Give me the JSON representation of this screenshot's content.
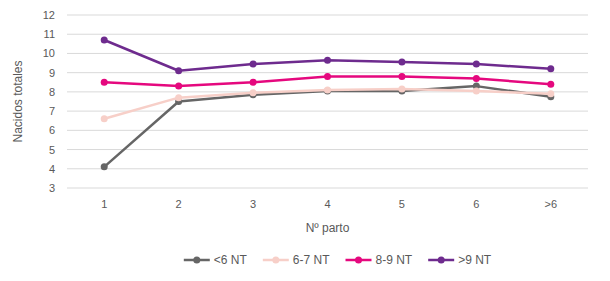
{
  "chart_data": {
    "type": "line",
    "x_label": "Nº parto",
    "y_label": "Nacidos totales",
    "categories": [
      "1",
      "2",
      "3",
      "4",
      "5",
      "6",
      ">6"
    ],
    "series": [
      {
        "name": "<6 NT",
        "color": "#666666",
        "values": [
          4.1,
          7.5,
          7.85,
          8.05,
          8.05,
          8.3,
          7.75
        ]
      },
      {
        "name": "6-7 NT",
        "color": "#f7cfc8",
        "values": [
          6.6,
          7.7,
          7.95,
          8.1,
          8.15,
          8.05,
          7.9
        ]
      },
      {
        "name": "8-9 NT",
        "color": "#e5087e",
        "values": [
          8.5,
          8.3,
          8.5,
          8.8,
          8.8,
          8.7,
          8.4
        ]
      },
      {
        "name": ">9 NT",
        "color": "#6e2b8e",
        "values": [
          10.7,
          9.1,
          9.45,
          9.65,
          9.55,
          9.45,
          9.2
        ]
      }
    ],
    "ylim": [
      3,
      12
    ],
    "yticks": [
      3,
      4,
      5,
      6,
      7,
      8,
      9,
      10,
      11,
      12
    ],
    "grid": true,
    "legend": "bottom",
    "marker": "circle"
  }
}
